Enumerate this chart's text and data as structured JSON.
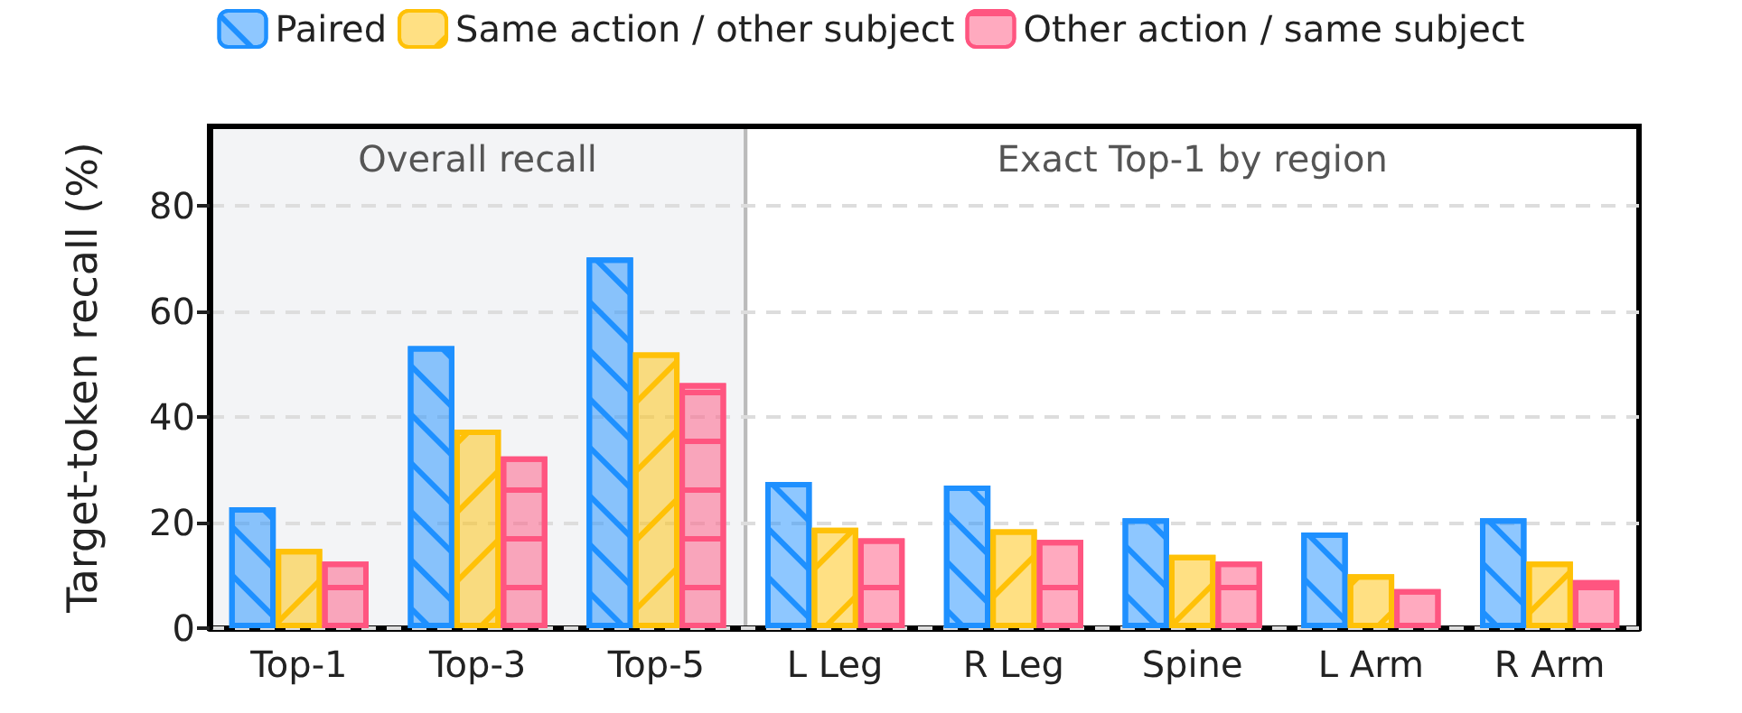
{
  "chart_data": {
    "type": "bar",
    "ylabel": "Target-token recall (%)",
    "categories": [
      "Top-1",
      "Top-3",
      "Top-5",
      "L Leg",
      "R Leg",
      "Spine",
      "L Arm",
      "R Arm"
    ],
    "series": [
      {
        "name": "Paired",
        "color": "#1e90ff",
        "values": [
          22.9,
          53.4,
          70.2,
          27.7,
          27.0,
          20.8,
          18.1,
          20.8
        ]
      },
      {
        "name": "Same action / other subject",
        "color": "#ffc107",
        "values": [
          15.0,
          37.6,
          52.2,
          19.0,
          18.7,
          13.9,
          10.2,
          12.6
        ]
      },
      {
        "name": "Other action / same subject",
        "color": "#ff5580",
        "values": [
          12.6,
          32.5,
          46.4,
          17.0,
          16.7,
          12.6,
          7.4,
          9.1
        ]
      }
    ],
    "ylim": [
      0,
      95
    ],
    "yticks": [
      0,
      20,
      40,
      60,
      80
    ],
    "grid": "y",
    "legend": "top",
    "bands": [
      {
        "axis": "x",
        "from": "Top-1",
        "to": "Top-5",
        "label": "Overall recall",
        "color": "#f3f4f6"
      },
      {
        "axis": "x",
        "from": "L Leg",
        "to": "R Arm",
        "label": "Exact Top-1 by region",
        "color": "#ffffff"
      }
    ]
  }
}
